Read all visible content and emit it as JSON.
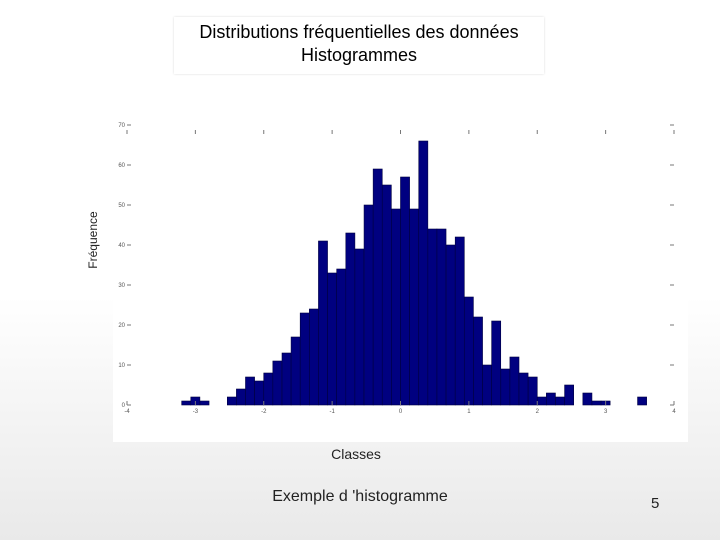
{
  "title": {
    "line1": "Distributions fréquentielles des données",
    "line2": "Histogrammes"
  },
  "caption": "Exemple d 'histogramme",
  "page_number": "5",
  "chart_data": {
    "type": "bar",
    "ylabel": "Fréquence",
    "xlabel": "Classes",
    "xlim": [
      -4,
      4
    ],
    "ylim": [
      0,
      70
    ],
    "xticks": [
      -4,
      -3,
      -2,
      -1,
      0,
      1,
      2,
      3,
      4
    ],
    "yticks": [
      0,
      10,
      20,
      30,
      40,
      50,
      60,
      70
    ],
    "bin_width": 0.133,
    "bar_color": "#000080",
    "bars": [
      {
        "x": -3.2,
        "y": 1
      },
      {
        "x": -3.067,
        "y": 2
      },
      {
        "x": -2.933,
        "y": 1
      },
      {
        "x": -2.533,
        "y": 2
      },
      {
        "x": -2.4,
        "y": 4
      },
      {
        "x": -2.267,
        "y": 7
      },
      {
        "x": -2.133,
        "y": 6
      },
      {
        "x": -2.0,
        "y": 8
      },
      {
        "x": -1.867,
        "y": 11
      },
      {
        "x": -1.733,
        "y": 13
      },
      {
        "x": -1.6,
        "y": 17
      },
      {
        "x": -1.467,
        "y": 23
      },
      {
        "x": -1.333,
        "y": 24
      },
      {
        "x": -1.2,
        "y": 41
      },
      {
        "x": -1.067,
        "y": 33
      },
      {
        "x": -0.933,
        "y": 34
      },
      {
        "x": -0.8,
        "y": 43
      },
      {
        "x": -0.667,
        "y": 39
      },
      {
        "x": -0.533,
        "y": 50
      },
      {
        "x": -0.4,
        "y": 59
      },
      {
        "x": -0.267,
        "y": 55
      },
      {
        "x": -0.133,
        "y": 49
      },
      {
        "x": 0.0,
        "y": 57
      },
      {
        "x": 0.133,
        "y": 49
      },
      {
        "x": 0.267,
        "y": 66
      },
      {
        "x": 0.4,
        "y": 44
      },
      {
        "x": 0.533,
        "y": 44
      },
      {
        "x": 0.667,
        "y": 40
      },
      {
        "x": 0.8,
        "y": 42
      },
      {
        "x": 0.933,
        "y": 27
      },
      {
        "x": 1.067,
        "y": 22
      },
      {
        "x": 1.2,
        "y": 10
      },
      {
        "x": 1.333,
        "y": 21
      },
      {
        "x": 1.467,
        "y": 9
      },
      {
        "x": 1.6,
        "y": 12
      },
      {
        "x": 1.733,
        "y": 8
      },
      {
        "x": 1.867,
        "y": 7
      },
      {
        "x": 2.0,
        "y": 2
      },
      {
        "x": 2.133,
        "y": 3
      },
      {
        "x": 2.267,
        "y": 2
      },
      {
        "x": 2.4,
        "y": 5
      },
      {
        "x": 2.667,
        "y": 3
      },
      {
        "x": 2.8,
        "y": 1
      },
      {
        "x": 2.933,
        "y": 1
      },
      {
        "x": 3.467,
        "y": 2
      }
    ]
  }
}
